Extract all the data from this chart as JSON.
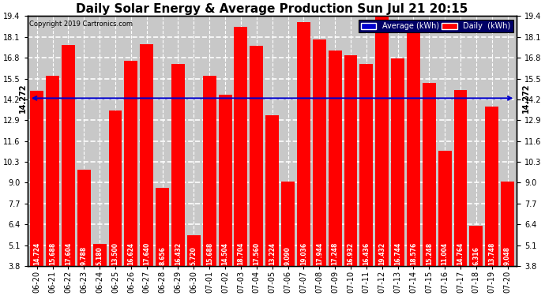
{
  "title": "Daily Solar Energy & Average Production Sun Jul 21 20:15",
  "copyright": "Copyright 2019 Cartronics.com",
  "average_value": 14.272,
  "average_label": "14.272",
  "bar_color": "#ff0000",
  "average_line_color": "#0000cc",
  "background_color": "#ffffff",
  "plot_bg_color": "#c8c8c8",
  "categories": [
    "06-20",
    "06-21",
    "06-22",
    "06-23",
    "06-24",
    "06-25",
    "06-26",
    "06-27",
    "06-28",
    "06-29",
    "06-30",
    "07-01",
    "07-02",
    "07-03",
    "07-04",
    "07-05",
    "07-06",
    "07-07",
    "07-08",
    "07-09",
    "07-10",
    "07-11",
    "07-12",
    "07-13",
    "07-14",
    "07-15",
    "07-16",
    "07-17",
    "07-18",
    "07-19",
    "07-20"
  ],
  "values": [
    14.724,
    15.688,
    17.604,
    9.788,
    5.18,
    13.5,
    16.624,
    17.64,
    8.656,
    16.432,
    5.72,
    15.688,
    14.504,
    18.704,
    17.56,
    13.224,
    9.09,
    19.036,
    17.944,
    17.248,
    16.932,
    16.436,
    19.432,
    16.744,
    18.576,
    15.248,
    11.004,
    14.764,
    6.316,
    13.748,
    9.048
  ],
  "ylim_min": 3.8,
  "ylim_max": 19.4,
  "yticks": [
    3.8,
    5.1,
    6.4,
    7.7,
    9.0,
    10.3,
    11.6,
    12.9,
    14.2,
    15.5,
    16.8,
    18.1,
    19.4
  ],
  "legend_avg_color": "#0000cc",
  "legend_daily_color": "#ff0000",
  "legend_avg_text": "Average (kWh)",
  "legend_daily_text": "Daily  (kWh)",
  "bar_label_fontsize": 5.5,
  "xlabel_fontsize": 7,
  "ylabel_fontsize": 7,
  "title_fontsize": 11
}
